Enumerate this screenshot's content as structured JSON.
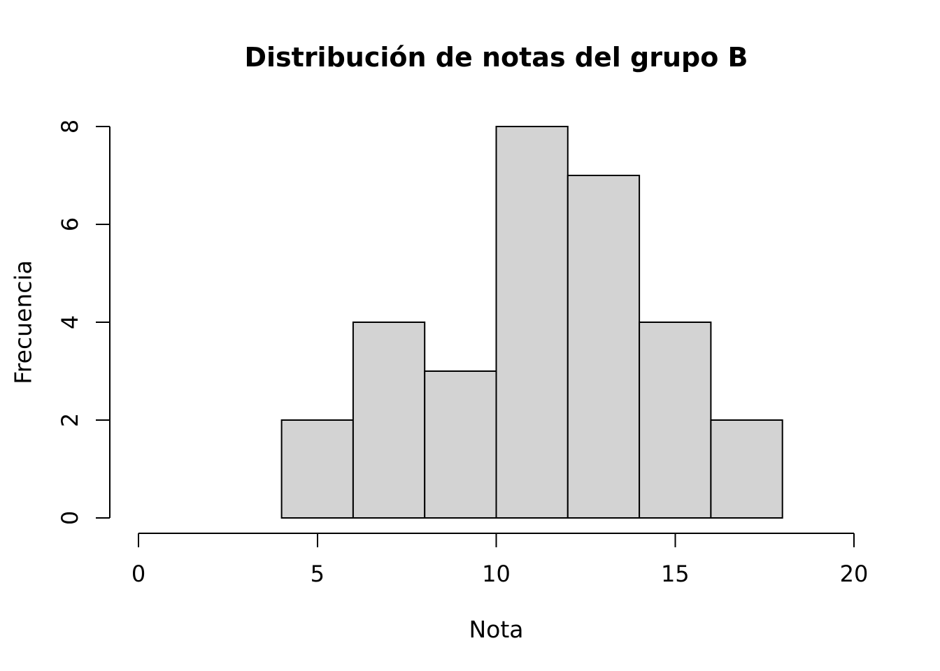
{
  "chart_data": {
    "type": "bar",
    "subtype": "histogram",
    "title": "Distribución de notas del grupo B",
    "xlabel": "Nota",
    "ylabel": "Frecuencia",
    "bin_edges": [
      4,
      6,
      8,
      10,
      12,
      14,
      16,
      18
    ],
    "categories": [
      "4-6",
      "6-8",
      "8-10",
      "10-12",
      "12-14",
      "14-16",
      "16-18"
    ],
    "values": [
      2,
      4,
      3,
      8,
      7,
      4,
      2
    ],
    "xlim": [
      0,
      20
    ],
    "ylim": [
      0,
      8
    ],
    "x_ticks": [
      0,
      5,
      10,
      15,
      20
    ],
    "y_ticks": [
      0,
      2,
      4,
      6,
      8
    ],
    "grid": false,
    "legend": null,
    "bar_fill": "#D3D3D3",
    "bar_stroke": "#000000",
    "axis_color": "#000000",
    "text_color": "#000000",
    "background": "#FFFFFF"
  }
}
